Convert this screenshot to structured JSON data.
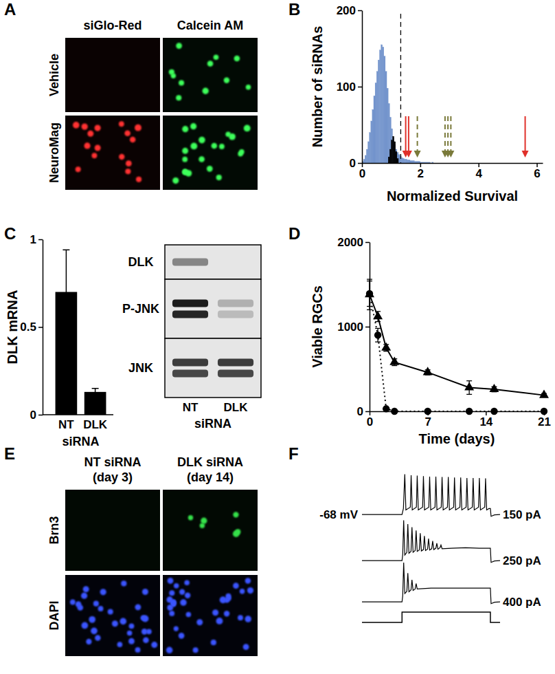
{
  "chart_data": [
    {
      "panel": "B",
      "type": "histogram",
      "x_label": "Normalized Survival",
      "y_label": "Number of siRNAs",
      "xlim": [
        0,
        6.2
      ],
      "xticks": [
        0,
        2,
        4,
        6
      ],
      "ylim": [
        0,
        200
      ],
      "yticks": [
        0,
        100,
        200
      ],
      "series": [
        {
          "color": "#7394cc",
          "bins": [
            0,
            0.05,
            0.1,
            0.15,
            0.2,
            0.25,
            0.3,
            0.35,
            0.4,
            0.45,
            0.5,
            0.55,
            0.6,
            0.65,
            0.7,
            0.75,
            0.8,
            0.85,
            0.9,
            0.95,
            1,
            1.05,
            1.1,
            1.15,
            1.2,
            1.25,
            1.3,
            1.35,
            1.4,
            1.45,
            1.5,
            1.55,
            1.6,
            1.65,
            1.7,
            1.75,
            1.8,
            1.85,
            1.9,
            1.95,
            2,
            2.05,
            2.1,
            2.15,
            2.2,
            2.25,
            2.3,
            2.35,
            2.4,
            2.45,
            2.5
          ],
          "counts": [
            2,
            5,
            10,
            18,
            28,
            40,
            55,
            70,
            88,
            105,
            120,
            135,
            148,
            155,
            152,
            140,
            120,
            98,
            78,
            60,
            45,
            33,
            24,
            18,
            14,
            11,
            9,
            7,
            6,
            5,
            5,
            4,
            4,
            3,
            3,
            3,
            2,
            2,
            2,
            2,
            1,
            1,
            1,
            1,
            1,
            1,
            1,
            0,
            1,
            0
          ]
        },
        {
          "color": "#000000",
          "bins": [
            0.9,
            0.95,
            1,
            1.05,
            1.1,
            1.15,
            1.2,
            1.25
          ],
          "counts": [
            8,
            18,
            30,
            35,
            28,
            15,
            6
          ]
        }
      ],
      "threshold": {
        "x": 1.33,
        "line_style": "dashed"
      },
      "arrows": [
        {
          "x": 1.5,
          "color": "#e0302a",
          "line_style": "solid"
        },
        {
          "x": 1.6,
          "color": "#e0302a",
          "line_style": "solid"
        },
        {
          "x": 1.9,
          "color": "#7a7a3a",
          "line_style": "dashed"
        },
        {
          "x": 2.85,
          "color": "#7a7a3a",
          "line_style": "dashed"
        },
        {
          "x": 2.95,
          "color": "#7a7a3a",
          "line_style": "dashed"
        },
        {
          "x": 3.05,
          "color": "#7a7a3a",
          "line_style": "dashed"
        },
        {
          "x": 5.6,
          "color": "#e0302a",
          "line_style": "solid"
        }
      ]
    },
    {
      "panel": "C",
      "type": "bar",
      "categories": [
        "NT",
        "DLK"
      ],
      "values": [
        0.7,
        0.13
      ],
      "errors": [
        0.24,
        0.02
      ],
      "color": "#000000",
      "x_label": "siRNA",
      "y_label": "DLK mRNA",
      "ylim": [
        0,
        1
      ],
      "yticks": [
        0,
        0.5,
        1
      ]
    },
    {
      "panel": "D",
      "type": "line",
      "x_label": "Time (days)",
      "y_label": "Viable RGCs",
      "x": [
        0,
        1,
        2,
        3,
        7,
        12,
        15,
        21
      ],
      "xlim": [
        0,
        21
      ],
      "xticks": [
        0,
        7,
        14,
        21
      ],
      "ylim": [
        0,
        2000
      ],
      "yticks": [
        0,
        1000,
        2000
      ],
      "series": [
        {
          "values": [
            1380,
            1120,
            750,
            580,
            460,
            280,
            260,
            190
          ],
          "errors": [
            180,
            60,
            40,
            40,
            30,
            80,
            30,
            20
          ],
          "marker": "triangle",
          "line_style": "solid",
          "color": "#000000"
        },
        {
          "values": [
            1390,
            900,
            30,
            0,
            0,
            0,
            0,
            0
          ],
          "errors": [
            150,
            80,
            0,
            0,
            0,
            0,
            0,
            0
          ],
          "marker": "circle",
          "line_style": "dotted",
          "color": "#000000"
        }
      ]
    },
    {
      "panel": "F",
      "type": "trace",
      "tick_labels": false,
      "xlim": [
        0,
        100
      ],
      "ylim": [
        -80,
        30
      ],
      "baseline": -68,
      "baseline_label": "-68 mV",
      "series": [
        {
          "name": "150 pA",
          "color": "#000000",
          "x": [
            0,
            29,
            30,
            31,
            31.8,
            35,
            35.6,
            36.4,
            39.4,
            40,
            40.8,
            43.9,
            44.5,
            45.3,
            48.4,
            49,
            49.8,
            52.9,
            53.5,
            54.3,
            57.4,
            58,
            58.8,
            61.9,
            62.5,
            63.3,
            66.4,
            67,
            67.8,
            70.9,
            71.5,
            72.3,
            75.4,
            76,
            76.8,
            79.9,
            80.5,
            81.3,
            84.4,
            85,
            85.8,
            88.9,
            89.5,
            90.3,
            92,
            93,
            93.5,
            96,
            100
          ],
          "values": [
            -68,
            -68,
            -55,
            20,
            -58,
            -52,
            18,
            -58,
            -52,
            17,
            -58,
            -52,
            16,
            -58,
            -52,
            15,
            -58,
            -52,
            15,
            -58,
            -52,
            14,
            -58,
            -52,
            14,
            -58,
            -52,
            13,
            -58,
            -52,
            13,
            -58,
            -52,
            12,
            -58,
            -52,
            12,
            -58,
            -52,
            12,
            -58,
            -52,
            11,
            -58,
            -55,
            -55,
            -72,
            -69,
            -68
          ]
        },
        {
          "name": "250 pA",
          "color": "#000000",
          "x": [
            0,
            29,
            29.5,
            30.2,
            31,
            32.5,
            33.2,
            34,
            35.5,
            36.2,
            37,
            38.5,
            39.2,
            40,
            41.5,
            42.2,
            43,
            44.5,
            45.2,
            46,
            47.5,
            48.2,
            49,
            50.5,
            51.2,
            52,
            53.5,
            54.2,
            55,
            56.5,
            57.2,
            58,
            65,
            75,
            85,
            93,
            93.5,
            96,
            100
          ],
          "values": [
            -68,
            -68,
            -55,
            20,
            -56,
            -50,
            12,
            -52,
            -48,
            5,
            -50,
            -46,
            -2,
            -48,
            -45,
            -8,
            -47,
            -44,
            -14,
            -46,
            -43,
            -20,
            -45,
            -42,
            -25,
            -44,
            -41,
            -30,
            -43,
            -40,
            -34,
            -42,
            -41,
            -40,
            -41,
            -41,
            -72,
            -69,
            -68
          ]
        },
        {
          "name": "400 pA",
          "color": "#000000",
          "x": [
            0,
            29,
            29.5,
            30.2,
            31,
            32.5,
            33.2,
            34,
            35.5,
            36.2,
            37,
            38.5,
            39.2,
            40,
            50,
            70,
            93,
            93.5,
            96,
            100
          ],
          "values": [
            -68,
            -68,
            -55,
            18,
            -50,
            -45,
            -5,
            -46,
            -42,
            -20,
            -43,
            -40,
            -28,
            -40,
            -38,
            -38,
            -38,
            -72,
            -69,
            -68
          ]
        }
      ],
      "stimulus": {
        "x": [
          0,
          29,
          29,
          93,
          93,
          100
        ],
        "values": [
          0,
          0,
          1,
          1,
          0,
          0
        ]
      }
    }
  ],
  "figure": {
    "micrographs": [
      {
        "panel": "A",
        "columns": [
          [
            "siGlo-Red"
          ],
          [
            "Calcein AM"
          ]
        ],
        "rows": [
          "Vehicle",
          "NeuroMag"
        ],
        "cell_counts": [
          [
            0,
            11
          ],
          [
            16,
            20
          ]
        ],
        "colors": [
          [
            "#ff3030",
            "#3cff5a"
          ],
          [
            "#ff3030",
            "#3cff5a"
          ]
        ]
      },
      {
        "panel": "E",
        "columns": [
          [
            "NT siRNA",
            "(day 3)"
          ],
          [
            "DLK siRNA",
            "(day 14)"
          ]
        ],
        "rows": [
          "Brn3",
          "DAPI"
        ],
        "cell_counts": [
          [
            0,
            6
          ],
          [
            30,
            34
          ]
        ],
        "colors": [
          [
            "#35e04a",
            "#35e04a"
          ],
          [
            "#3a55ff",
            "#3a55ff"
          ]
        ]
      }
    ],
    "blot": {
      "lanes": [
        "NT",
        "DLK"
      ],
      "x_label": "siRNA",
      "rows": [
        {
          "label": "DLK",
          "intensities": [
            [
              0.45
            ],
            [
              0
            ]
          ]
        },
        {
          "label": "P-JNK",
          "intensities": [
            [
              0.95,
              0.9
            ],
            [
              0.25,
              0.2
            ]
          ]
        },
        {
          "label": "JNK",
          "intensities": [
            [
              0.8,
              0.75
            ],
            [
              0.8,
              0.75
            ]
          ]
        }
      ]
    }
  }
}
